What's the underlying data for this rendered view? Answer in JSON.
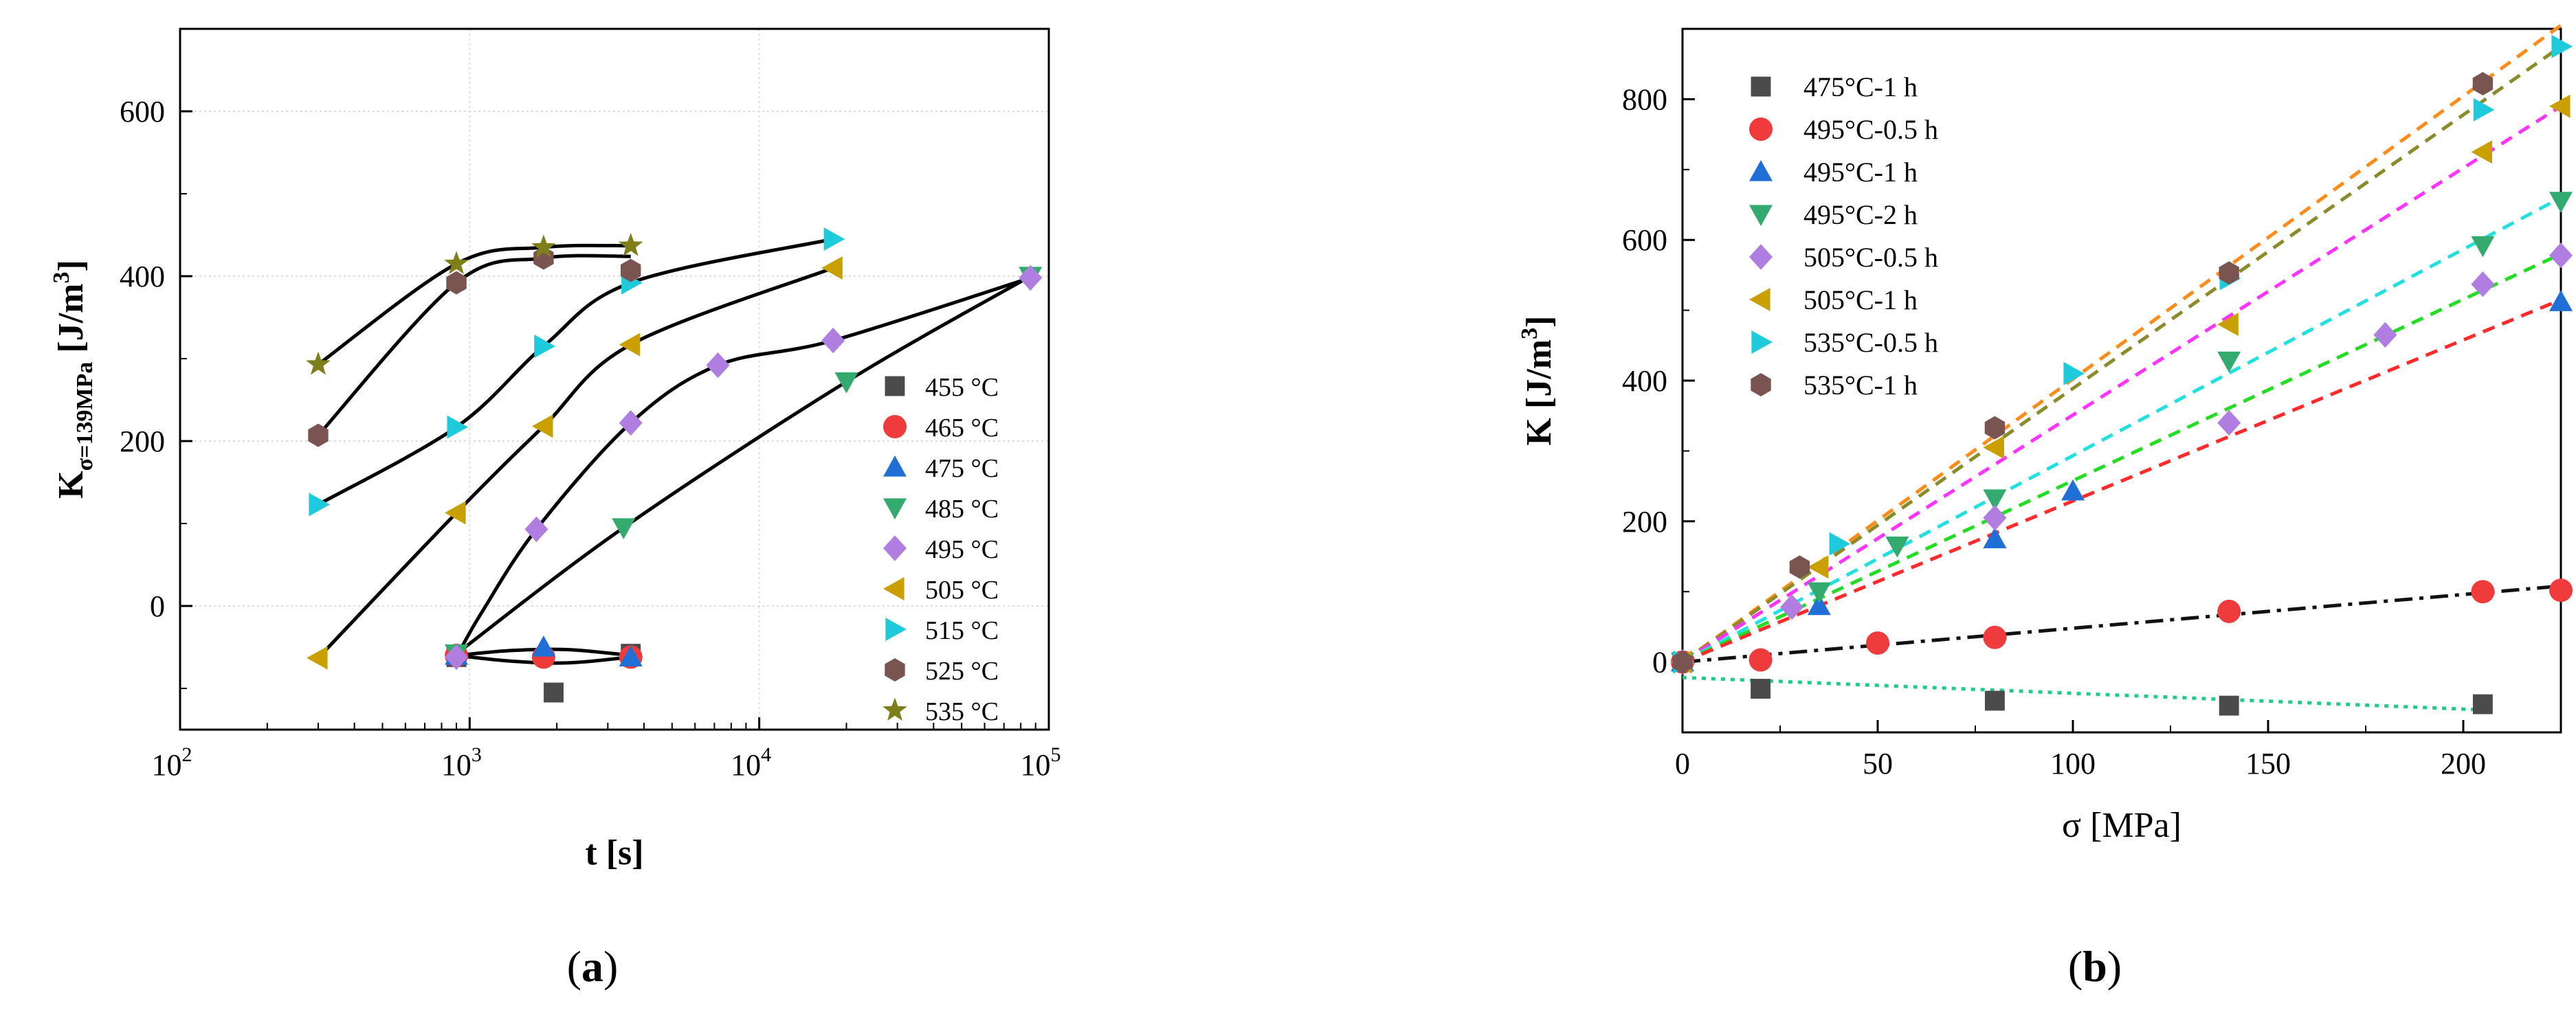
{
  "chart_data": [
    {
      "type": "scatter",
      "panel_label": "a",
      "xscale": "log",
      "xlim": [
        100,
        100000
      ],
      "ylim": [
        -150,
        700
      ],
      "xticks": [
        {
          "value": 100,
          "base": "10",
          "exp": "2"
        },
        {
          "value": 1000,
          "base": "10",
          "exp": "3"
        },
        {
          "value": 10000,
          "base": "10",
          "exp": "4"
        },
        {
          "value": 100000,
          "base": "10",
          "exp": "5"
        }
      ],
      "yticks": [
        0,
        200,
        400,
        600
      ],
      "xlabel": "t [s]",
      "ylabel": {
        "main": "K",
        "sub": "σ=139MPa",
        "unit": " [J/m",
        "sup": "3",
        "close": "]"
      },
      "grid": true,
      "legend_position": "right",
      "series": [
        {
          "name": "455 °C",
          "marker": "square",
          "color": "#4b4b4b",
          "points": [
            [
              900,
              -62
            ],
            [
              1950,
              -105
            ],
            [
              3600,
              -58
            ]
          ]
        },
        {
          "name": "465 °C",
          "marker": "circle",
          "color": "#ef3b3b",
          "points": [
            [
              900,
              -60
            ],
            [
              1800,
              -62
            ],
            [
              3600,
              -62
            ]
          ]
        },
        {
          "name": "475 °C",
          "marker": "triangle-up",
          "color": "#1f6fd6",
          "points": [
            [
              900,
              -60
            ],
            [
              1800,
              -50
            ],
            [
              3600,
              -62
            ]
          ]
        },
        {
          "name": "485 °C",
          "marker": "triangle-down",
          "color": "#33aa6e",
          "points": [
            [
              900,
              -58
            ],
            [
              3400,
              95
            ],
            [
              20000,
              272
            ],
            [
              86400,
              400
            ]
          ]
        },
        {
          "name": "495 °C",
          "marker": "diamond",
          "color": "#b07ee0",
          "points": [
            [
              900,
              -62
            ],
            [
              1700,
              93
            ],
            [
              3600,
              222
            ],
            [
              7200,
              292
            ],
            [
              18000,
              322
            ],
            [
              86400,
              398
            ]
          ]
        },
        {
          "name": "505 °C",
          "marker": "triangle-left",
          "color": "#c9a000",
          "points": [
            [
              300,
              -63
            ],
            [
              900,
              113
            ],
            [
              1800,
              218
            ],
            [
              3600,
              317
            ],
            [
              18000,
              410
            ]
          ]
        },
        {
          "name": "515 °C",
          "marker": "triangle-right",
          "color": "#1ecbdc",
          "points": [
            [
              300,
              123
            ],
            [
              900,
              217
            ],
            [
              1800,
              315
            ],
            [
              3600,
              392
            ],
            [
              18000,
              445
            ]
          ]
        },
        {
          "name": "525 °C",
          "marker": "hexagon",
          "color": "#7a5450",
          "points": [
            [
              300,
              207
            ],
            [
              900,
              392
            ],
            [
              1800,
              422
            ],
            [
              3600,
              407
            ]
          ]
        },
        {
          "name": "535 °C",
          "marker": "star",
          "color": "#7f7f1a",
          "points": [
            [
              300,
              293
            ],
            [
              900,
              415
            ],
            [
              1800,
              435
            ],
            [
              3600,
              437
            ]
          ]
        }
      ],
      "fit_curves": [
        [
          [
            900,
            -60
          ],
          [
            1400,
            -54
          ],
          [
            2200,
            -53
          ],
          [
            3600,
            -60
          ]
        ],
        [
          [
            900,
            -60
          ],
          [
            1400,
            -67
          ],
          [
            2200,
            -69
          ],
          [
            3600,
            -62
          ]
        ],
        [
          [
            900,
            -62
          ],
          [
            1100,
            -8
          ],
          [
            1700,
            93
          ],
          [
            3600,
            222
          ],
          [
            7200,
            292
          ],
          [
            18000,
            322
          ],
          [
            86400,
            398
          ]
        ],
        [
          [
            900,
            -58
          ],
          [
            3400,
            95
          ],
          [
            20000,
            272
          ],
          [
            86400,
            400
          ]
        ],
        [
          [
            300,
            -63
          ],
          [
            900,
            113
          ],
          [
            1800,
            218
          ],
          [
            3600,
            317
          ],
          [
            18000,
            410
          ]
        ],
        [
          [
            300,
            123
          ],
          [
            900,
            217
          ],
          [
            1800,
            315
          ],
          [
            3600,
            392
          ],
          [
            18000,
            445
          ]
        ],
        [
          [
            300,
            207
          ],
          [
            900,
            392
          ],
          [
            1800,
            422
          ],
          [
            3600,
            424
          ]
        ],
        [
          [
            300,
            293
          ],
          [
            900,
            415
          ],
          [
            1800,
            435
          ],
          [
            3600,
            437
          ]
        ]
      ]
    },
    {
      "type": "scatter",
      "panel_label": "b",
      "xscale": "linear",
      "xlim": [
        0,
        225
      ],
      "ylim": [
        -100,
        900
      ],
      "xticks": [
        0,
        50,
        100,
        150,
        200
      ],
      "yticks": [
        0,
        200,
        400,
        600,
        800
      ],
      "xlabel": "σ [MPa]",
      "ylabel": {
        "main": "K",
        "sub": "",
        "unit": " [J/m",
        "sup": "3",
        "close": "]"
      },
      "grid": false,
      "legend_position": "top-left",
      "series": [
        {
          "name": "475°C-1 h",
          "marker": "square",
          "color": "#4b4b4b",
          "points": [
            [
              0,
              0
            ],
            [
              20,
              -38
            ],
            [
              80,
              -55
            ],
            [
              140,
              -62
            ],
            [
              205,
              -60
            ]
          ]
        },
        {
          "name": "495°C-0.5 h",
          "marker": "circle",
          "color": "#ef3b3b",
          "points": [
            [
              0,
              0
            ],
            [
              20,
              3
            ],
            [
              50,
              27
            ],
            [
              80,
              35
            ],
            [
              140,
              72
            ],
            [
              205,
              100
            ],
            [
              225,
              102
            ]
          ]
        },
        {
          "name": "495°C-1 h",
          "marker": "triangle-up",
          "color": "#1f6fd6",
          "points": [
            [
              0,
              0
            ],
            [
              35,
              80
            ],
            [
              80,
              175
            ],
            [
              100,
              243
            ],
            [
              225,
              512
            ]
          ]
        },
        {
          "name": "495°C-2 h",
          "marker": "triangle-down",
          "color": "#33aa6e",
          "points": [
            [
              0,
              0
            ],
            [
              35,
              100
            ],
            [
              55,
              165
            ],
            [
              80,
              232
            ],
            [
              140,
              428
            ],
            [
              205,
              592
            ],
            [
              225,
              655
            ]
          ]
        },
        {
          "name": "505°C-0.5 h",
          "marker": "diamond",
          "color": "#b07ee0",
          "points": [
            [
              0,
              0
            ],
            [
              28,
              78
            ],
            [
              80,
              205
            ],
            [
              140,
              340
            ],
            [
              180,
              465
            ],
            [
              205,
              537
            ],
            [
              225,
              578
            ]
          ]
        },
        {
          "name": "505°C-1 h",
          "marker": "triangle-left",
          "color": "#c9a000",
          "points": [
            [
              0,
              0
            ],
            [
              35,
              135
            ],
            [
              80,
              305
            ],
            [
              140,
              480
            ],
            [
              205,
              725
            ],
            [
              225,
              790
            ]
          ]
        },
        {
          "name": "535°C-0.5 h",
          "marker": "triangle-right",
          "color": "#1ecbdc",
          "points": [
            [
              0,
              0
            ],
            [
              40,
              168
            ],
            [
              100,
              410
            ],
            [
              140,
              545
            ],
            [
              205,
              785
            ],
            [
              225,
              875
            ]
          ]
        },
        {
          "name": "535°C-1 h",
          "marker": "hexagon",
          "color": "#7a5450",
          "points": [
            [
              0,
              0
            ],
            [
              30,
              135
            ],
            [
              80,
              333
            ],
            [
              140,
              553
            ],
            [
              205,
              822
            ]
          ]
        }
      ],
      "fit_lines": [
        {
          "color": "#ff8c1a",
          "dash": "dash",
          "from": [
            0,
            0
          ],
          "to": [
            225,
            905
          ]
        },
        {
          "color": "#8b8b2a",
          "dash": "dash",
          "from": [
            0,
            0
          ],
          "to": [
            225,
            875
          ]
        },
        {
          "color": "#ff33ff",
          "dash": "dash",
          "from": [
            0,
            0
          ],
          "to": [
            225,
            790
          ]
        },
        {
          "color": "#22e0e0",
          "dash": "dash",
          "from": [
            0,
            0
          ],
          "to": [
            225,
            660
          ]
        },
        {
          "color": "#22dd22",
          "dash": "dash",
          "from": [
            0,
            0
          ],
          "to": [
            225,
            580
          ]
        },
        {
          "color": "#ff2a2a",
          "dash": "dash",
          "from": [
            0,
            0
          ],
          "to": [
            225,
            515
          ]
        },
        {
          "color": "#111111",
          "dash": "dashdot",
          "from": [
            0,
            0
          ],
          "to": [
            225,
            108
          ]
        },
        {
          "color": "#22cc88",
          "dash": "dot",
          "from": [
            0,
            -22
          ],
          "to": [
            205,
            -68
          ]
        }
      ]
    }
  ]
}
